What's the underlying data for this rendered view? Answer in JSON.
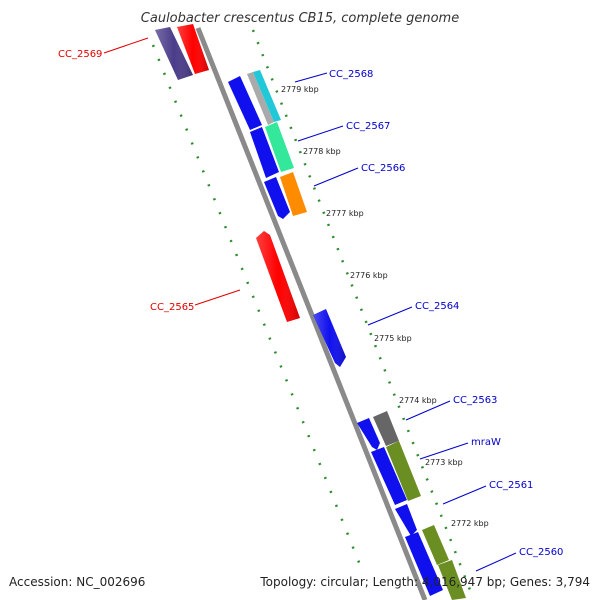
{
  "title": "Caulobacter crescentus CB15, complete genome",
  "footer": {
    "accession": "Accession: NC_002696",
    "summary": "Topology: circular; Length: 4,016,947 bp; Genes: 3,794"
  },
  "ticks": [
    "2779 kbp",
    "2778 kbp",
    "2777 kbp",
    "2776 kbp",
    "2775 kbp",
    "2774 kbp",
    "2773 kbp",
    "2772 kbp"
  ],
  "genes": {
    "cc2569": {
      "label": "CC_2569",
      "color": "#e00000"
    },
    "cc2568": {
      "label": "CC_2568",
      "color": "#0000cc"
    },
    "cc2567": {
      "label": "CC_2567",
      "color": "#0000cc"
    },
    "cc2566": {
      "label": "CC_2566",
      "color": "#0000cc"
    },
    "cc2565": {
      "label": "CC_2565",
      "color": "#e00000"
    },
    "cc2564": {
      "label": "CC_2564",
      "color": "#0000cc"
    },
    "cc2563": {
      "label": "CC_2563",
      "color": "#0000cc"
    },
    "mraW": {
      "label": "mraW",
      "color": "#0000cc"
    },
    "cc2561": {
      "label": "CC_2561",
      "color": "#0000cc"
    },
    "cc2560": {
      "label": "CC_2560",
      "color": "#0000cc"
    }
  },
  "colors": {
    "forward_cds": "#1010ee",
    "reverse_cds": "#ff0000",
    "backbone": "#888888",
    "tick_dots": "#2e8b2e",
    "feature_cyan": "#20c8d8",
    "feature_green": "#33e89a",
    "feature_orange": "#ff8c00",
    "feature_olive": "#6b8e23",
    "feature_gray": "#666666",
    "feature_purple": "#4b3c8a"
  }
}
